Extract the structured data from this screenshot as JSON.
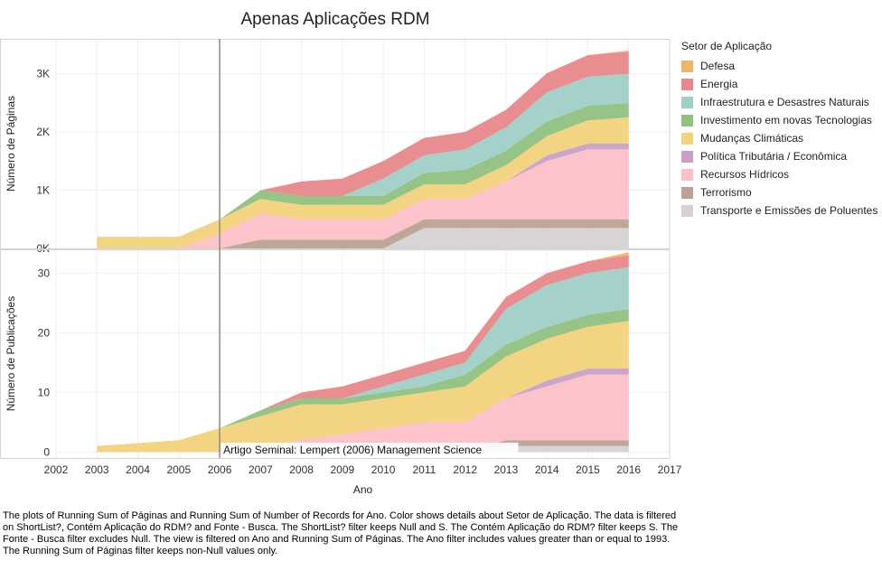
{
  "chart_data": {
    "type": "area",
    "title": "Apenas Aplicações RDM",
    "xlabel": "Ano",
    "x_ticks": [
      2002,
      2003,
      2004,
      2005,
      2006,
      2007,
      2008,
      2009,
      2010,
      2011,
      2012,
      2013,
      2014,
      2015,
      2016,
      2017
    ],
    "xlim": [
      2002,
      2017
    ],
    "grid": true,
    "legend_position": "right",
    "legend_title": "Setor de Aplicação",
    "annotation": {
      "text": "Artigo Seminal: Lempert (2006) Management Science",
      "x": 2006
    },
    "series": [
      {
        "name": "Defesa",
        "color": "#f0b46a"
      },
      {
        "name": "Energia",
        "color": "#e8888a"
      },
      {
        "name": "Infraestrutura e Desastres Naturais",
        "color": "#9fd0c8"
      },
      {
        "name": "Investimento em novas Tecnologias",
        "color": "#8fc17f"
      },
      {
        "name": "Mudanças Climáticas",
        "color": "#f2d27c"
      },
      {
        "name": "Política Tributária / Econômica",
        "color": "#c9a1c7"
      },
      {
        "name": "Recursos Hídricos",
        "color": "#fcc0c8"
      },
      {
        "name": "Terrorismo",
        "color": "#bba293"
      },
      {
        "name": "Transporte e Emissões de Poluentes",
        "color": "#d5d2d1"
      }
    ],
    "panels": [
      {
        "ylabel": "Número de Páginas",
        "ylim": [
          0,
          3600
        ],
        "y_ticks": [
          0,
          1000,
          2000,
          3000
        ],
        "y_tick_labels": [
          "0K",
          "1K",
          "2K",
          "3K"
        ],
        "x": [
          2003,
          2005,
          2006,
          2007,
          2008,
          2009,
          2010,
          2011,
          2012,
          2013,
          2014,
          2015,
          2016
        ],
        "stack": [
          {
            "series": "Transporte e Emissões de Poluentes",
            "values": [
              0,
              0,
              0,
              0,
              0,
              0,
              0,
              350,
              350,
              350,
              350,
              350,
              350
            ]
          },
          {
            "series": "Terrorismo",
            "values": [
              0,
              0,
              0,
              150,
              150,
              150,
              150,
              150,
              150,
              150,
              150,
              150,
              150
            ]
          },
          {
            "series": "Recursos Hídricos",
            "values": [
              0,
              0,
              250,
              450,
              350,
              350,
              350,
              350,
              350,
              650,
              1000,
              1200,
              1200
            ]
          },
          {
            "series": "Política Tributária / Econômica",
            "values": [
              0,
              0,
              0,
              0,
              0,
              0,
              0,
              0,
              0,
              0,
              100,
              100,
              100
            ]
          },
          {
            "series": "Mudanças Climáticas",
            "values": [
              200,
              200,
              250,
              250,
              250,
              250,
              250,
              250,
              250,
              280,
              330,
              400,
              450
            ]
          },
          {
            "series": "Investimento em novas Tecnologias",
            "values": [
              0,
              0,
              0,
              150,
              150,
              150,
              150,
              200,
              250,
              250,
              250,
              250,
              250
            ]
          },
          {
            "series": "Infraestrutura e Desastres Naturais",
            "values": [
              0,
              0,
              0,
              0,
              0,
              0,
              300,
              300,
              350,
              400,
              500,
              500,
              500
            ]
          },
          {
            "series": "Energia",
            "values": [
              0,
              0,
              0,
              0,
              250,
              300,
              300,
              300,
              300,
              300,
              330,
              370,
              380
            ]
          },
          {
            "series": "Defesa",
            "values": [
              0,
              0,
              0,
              0,
              0,
              0,
              0,
              0,
              0,
              0,
              0,
              0,
              20
            ]
          }
        ]
      },
      {
        "ylabel": "Número de Publicações",
        "ylim": [
          -1,
          34
        ],
        "y_ticks": [
          0,
          10,
          20,
          30
        ],
        "y_tick_labels": [
          "0",
          "10",
          "20",
          "30"
        ],
        "x": [
          2003,
          2005,
          2006,
          2007,
          2008,
          2009,
          2010,
          2011,
          2012,
          2013,
          2014,
          2015,
          2016
        ],
        "stack": [
          {
            "series": "Transporte e Emissões de Poluentes",
            "values": [
              0,
              0,
              0,
              0,
              0,
              0,
              0,
              0,
              0,
              1,
              1,
              1,
              1
            ]
          },
          {
            "series": "Terrorismo",
            "values": [
              0,
              0,
              0,
              0,
              0,
              0,
              0,
              0,
              0,
              1,
              1,
              1,
              1
            ]
          },
          {
            "series": "Recursos Hídricos",
            "values": [
              0,
              0,
              0,
              1,
              2,
              3,
              4,
              5,
              5,
              7,
              9,
              11,
              11
            ]
          },
          {
            "series": "Política Tributária / Econômica",
            "values": [
              0,
              0,
              0,
              0,
              0,
              0,
              0,
              0,
              0,
              0,
              1,
              1,
              1
            ]
          },
          {
            "series": "Mudanças Climáticas",
            "values": [
              1,
              2,
              4,
              5,
              6,
              5,
              5,
              5,
              6,
              7,
              7,
              7,
              8
            ]
          },
          {
            "series": "Investimento em novas Tecnologias",
            "values": [
              0,
              0,
              0,
              1,
              1,
              1,
              1,
              1,
              2,
              2,
              2,
              2,
              2
            ]
          },
          {
            "series": "Infraestrutura e Desastres Naturais",
            "values": [
              0,
              0,
              0,
              0,
              0,
              0,
              1,
              2,
              2,
              6,
              7,
              7,
              7
            ]
          },
          {
            "series": "Energia",
            "values": [
              0,
              0,
              0,
              0,
              1,
              2,
              2,
              2,
              2,
              2,
              2,
              2,
              2
            ]
          },
          {
            "series": "Defesa",
            "values": [
              0,
              0,
              0,
              0,
              0,
              0,
              0,
              0,
              0,
              0,
              0,
              0,
              0.5
            ]
          }
        ]
      }
    ]
  },
  "caption": "The plots of Running Sum of Páginas and Running Sum of Number of Records for Ano.  Color shows details about Setor de Aplicação. The data is filtered on ShortList?, Contém Aplicação do RDM? and Fonte - Busca. The ShortList? filter keeps Null and S. The Contém Aplicação do RDM? filter keeps S. The Fonte - Busca filter excludes Null. The view is filtered on Ano and Running Sum of Páginas. The Ano filter includes values greater than or equal to 1993. The Running Sum of Páginas filter keeps non-Null values only."
}
